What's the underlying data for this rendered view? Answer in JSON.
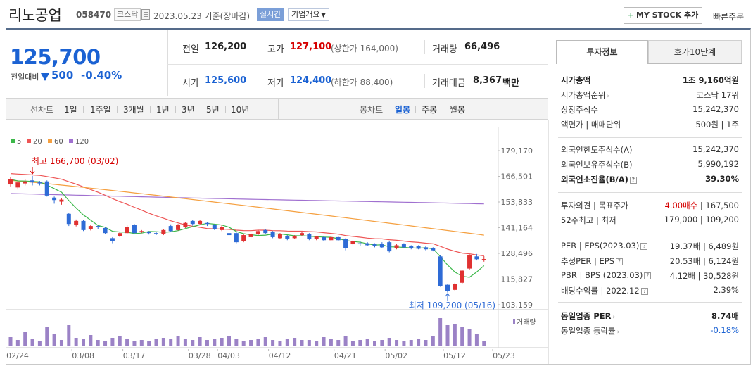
{
  "header": {
    "company": "리노공업",
    "code": "058470",
    "market_badge": "코스닥",
    "date": "2023.05.23 기준(장마감)",
    "realtime_label": "실시간",
    "overview_label": "기업개요",
    "mystock_label": "MY STOCK 추가",
    "mystock_plus": "+",
    "quickorder_label": "빠른주문"
  },
  "price": {
    "current": "125,700",
    "change_label": "전일대비",
    "change_value": "500",
    "change_pct": "-0.40%"
  },
  "info": {
    "prev_close_label": "전일",
    "prev_close": "126,200",
    "high_label": "고가",
    "high": "127,100",
    "upper_limit": "(상한가 164,000)",
    "volume_label": "거래량",
    "volume": "66,496",
    "open_label": "시가",
    "open": "125,600",
    "low_label": "저가",
    "low": "124,400",
    "lower_limit": "(하한가 88,400)",
    "amount_label": "거래대금",
    "amount": "8,367",
    "amount_unit": "백만"
  },
  "chart_tabs": {
    "line_label": "선차트",
    "periods": [
      "1일",
      "1주일",
      "3개월",
      "1년",
      "3년",
      "5년",
      "10년"
    ],
    "candle_label": "봉차트",
    "candles": [
      "일봉",
      "주봉",
      "월봉"
    ],
    "selected_candle": "일봉"
  },
  "chart_data": {
    "type": "candlestick",
    "legend": [
      {
        "name": "5",
        "color": "#3cb84a"
      },
      {
        "name": "20",
        "color": "#ee5555"
      },
      {
        "name": "60",
        "color": "#f5a040"
      },
      {
        "name": "120",
        "color": "#a070d0"
      }
    ],
    "y_ticks": [
      "179,170",
      "166,501",
      "153,833",
      "141,164",
      "128,496",
      "115,827",
      "103,159"
    ],
    "ylim": [
      103159,
      179170
    ],
    "x_ticks": [
      "02/24",
      "03/08",
      "03/17",
      "03/28",
      "04/03",
      "04/12",
      "04/21",
      "05/02",
      "05/12",
      "05/23"
    ],
    "max_label": "최고 166,700 (03/02)",
    "min_label": "최저 109,200 (05/16)",
    "volume_label": "거래량",
    "candles": [
      {
        "o": 162500,
        "c": 165000,
        "h": 166000,
        "l": 161500
      },
      {
        "o": 161000,
        "c": 163500,
        "h": 164500,
        "l": 160000
      },
      {
        "o": 163000,
        "c": 164000,
        "h": 165000,
        "l": 162000
      },
      {
        "o": 164500,
        "c": 163500,
        "h": 166700,
        "l": 162000
      },
      {
        "o": 163500,
        "c": 163000,
        "h": 164200,
        "l": 162000
      },
      {
        "o": 164000,
        "c": 157000,
        "h": 164500,
        "l": 156500
      },
      {
        "o": 156000,
        "c": 154800,
        "h": 156500,
        "l": 153000
      },
      {
        "o": 154000,
        "c": 155000,
        "h": 155800,
        "l": 152500
      },
      {
        "o": 148000,
        "c": 143000,
        "h": 148500,
        "l": 142000
      },
      {
        "o": 142500,
        "c": 144500,
        "h": 145200,
        "l": 141800
      },
      {
        "o": 144500,
        "c": 140000,
        "h": 145000,
        "l": 139500
      },
      {
        "o": 140500,
        "c": 142000,
        "h": 142500,
        "l": 139800
      },
      {
        "o": 142000,
        "c": 141800,
        "h": 142200,
        "l": 140500
      },
      {
        "o": 141000,
        "c": 138500,
        "h": 141500,
        "l": 138000
      },
      {
        "o": 136000,
        "c": 134500,
        "h": 136500,
        "l": 133500
      },
      {
        "o": 137000,
        "c": 138500,
        "h": 139000,
        "l": 136500
      },
      {
        "o": 138500,
        "c": 141500,
        "h": 142500,
        "l": 138000
      },
      {
        "o": 142500,
        "c": 138500,
        "h": 143000,
        "l": 138000
      },
      {
        "o": 139000,
        "c": 139500,
        "h": 140000,
        "l": 138500
      },
      {
        "o": 139000,
        "c": 138500,
        "h": 139500,
        "l": 137800
      },
      {
        "o": 138500,
        "c": 138000,
        "h": 139200,
        "l": 137500
      },
      {
        "o": 138000,
        "c": 140000,
        "h": 140500,
        "l": 137500
      },
      {
        "o": 142000,
        "c": 139500,
        "h": 142800,
        "l": 139000
      },
      {
        "o": 140000,
        "c": 142500,
        "h": 143000,
        "l": 139800
      },
      {
        "o": 141500,
        "c": 143500,
        "h": 144000,
        "l": 141000
      },
      {
        "o": 144500,
        "c": 143000,
        "h": 145000,
        "l": 142200
      },
      {
        "o": 143000,
        "c": 144500,
        "h": 145000,
        "l": 142500
      },
      {
        "o": 143500,
        "c": 143000,
        "h": 144000,
        "l": 142000
      },
      {
        "o": 142500,
        "c": 140500,
        "h": 143000,
        "l": 140000
      },
      {
        "o": 140000,
        "c": 141500,
        "h": 142500,
        "l": 139500
      },
      {
        "o": 138500,
        "c": 137500,
        "h": 139000,
        "l": 137000
      },
      {
        "o": 138500,
        "c": 134000,
        "h": 139000,
        "l": 133500
      },
      {
        "o": 134500,
        "c": 137500,
        "h": 138000,
        "l": 134000
      },
      {
        "o": 136500,
        "c": 138000,
        "h": 138500,
        "l": 136000
      },
      {
        "o": 138000,
        "c": 139500,
        "h": 140000,
        "l": 137500
      },
      {
        "o": 140000,
        "c": 138500,
        "h": 140500,
        "l": 138000
      },
      {
        "o": 139000,
        "c": 136500,
        "h": 139500,
        "l": 136000
      },
      {
        "o": 136000,
        "c": 138000,
        "h": 138500,
        "l": 135500
      },
      {
        "o": 137000,
        "c": 135800,
        "h": 137500,
        "l": 135000
      },
      {
        "o": 136000,
        "c": 137000,
        "h": 137500,
        "l": 135500
      },
      {
        "o": 137500,
        "c": 138500,
        "h": 139000,
        "l": 137000
      },
      {
        "o": 138000,
        "c": 135500,
        "h": 138500,
        "l": 135000
      },
      {
        "o": 135500,
        "c": 136800,
        "h": 137000,
        "l": 135000
      },
      {
        "o": 136500,
        "c": 135000,
        "h": 137000,
        "l": 134500
      },
      {
        "o": 135000,
        "c": 136500,
        "h": 137000,
        "l": 134500
      },
      {
        "o": 136500,
        "c": 135000,
        "h": 137000,
        "l": 134500
      },
      {
        "o": 135500,
        "c": 131000,
        "h": 136000,
        "l": 130000
      },
      {
        "o": 133000,
        "c": 134500,
        "h": 135000,
        "l": 132500
      },
      {
        "o": 133500,
        "c": 133000,
        "h": 134500,
        "l": 132000
      },
      {
        "o": 133500,
        "c": 132500,
        "h": 134000,
        "l": 132000
      },
      {
        "o": 133000,
        "c": 132200,
        "h": 133500,
        "l": 131500
      },
      {
        "o": 133000,
        "c": 131500,
        "h": 134000,
        "l": 131000
      },
      {
        "o": 134000,
        "c": 129500,
        "h": 134500,
        "l": 129000
      },
      {
        "o": 131000,
        "c": 132500,
        "h": 133000,
        "l": 130500
      },
      {
        "o": 133000,
        "c": 131500,
        "h": 133500,
        "l": 131000
      },
      {
        "o": 132000,
        "c": 131000,
        "h": 132500,
        "l": 130500
      },
      {
        "o": 132000,
        "c": 130800,
        "h": 132500,
        "l": 130500
      },
      {
        "o": 131500,
        "c": 130500,
        "h": 132000,
        "l": 130000
      },
      {
        "o": 131000,
        "c": 130000,
        "h": 131500,
        "l": 129500
      },
      {
        "o": 127000,
        "c": 112500,
        "h": 127500,
        "l": 112000
      },
      {
        "o": 113000,
        "c": 110000,
        "h": 113500,
        "l": 109200
      },
      {
        "o": 110500,
        "c": 113500,
        "h": 114000,
        "l": 110000
      },
      {
        "o": 114000,
        "c": 120000,
        "h": 120500,
        "l": 113500
      },
      {
        "o": 121000,
        "c": 127500,
        "h": 128000,
        "l": 120500
      },
      {
        "o": 127000,
        "c": 125600,
        "h": 128200,
        "l": 125000
      },
      {
        "o": 125600,
        "c": 125700,
        "h": 127100,
        "l": 124400
      }
    ],
    "volume": [
      13,
      9,
      20,
      11,
      8,
      27,
      18,
      9,
      30,
      12,
      10,
      16,
      9,
      8,
      12,
      14,
      10,
      8,
      9,
      8,
      11,
      12,
      10,
      15,
      11,
      9,
      13,
      9,
      10,
      12,
      14,
      10,
      8,
      9,
      11,
      13,
      9,
      8,
      10,
      12,
      9,
      9,
      8,
      13,
      10,
      9,
      14,
      8,
      9,
      10,
      8,
      9,
      12,
      9,
      8,
      9,
      10,
      9,
      15,
      40,
      30,
      32,
      27,
      25,
      18,
      8
    ]
  },
  "right_panel": {
    "tab_active": "투자정보",
    "tab_other": "호가10단계",
    "rows": [
      {
        "label": "시가총액",
        "value": "1조 9,160억원",
        "bold": true
      },
      {
        "label": "시가총액순위",
        "value": "코스닥 17위",
        "arrow": true
      },
      {
        "label": "상장주식수",
        "value": "15,242,370"
      },
      {
        "label": "액면가 | 매매단위",
        "value": "500원 | 1주"
      },
      {
        "label": "외국인한도주식수(A)",
        "value": "15,242,370"
      },
      {
        "label": "외국인보유주식수(B)",
        "value": "5,990,192"
      },
      {
        "label": "외국인소진율(B/A)",
        "value": "39.30%",
        "bold": true,
        "help": true
      },
      {
        "label": "투자의견 | 목표주가",
        "value_red": "4.00매수",
        "value": "167,500"
      },
      {
        "label": "52주최고 | 최저",
        "value": "179,000 | 109,200"
      },
      {
        "label": "PER | EPS(2023.03)",
        "value": "19.37배 | 6,489원",
        "help": true
      },
      {
        "label": "추정PER | EPS",
        "value": "20.53배 | 6,124원",
        "help": true
      },
      {
        "label": "PBR | BPS (2023.03)",
        "value": "4.12배 | 30,528원",
        "help": true
      },
      {
        "label": "배당수익률 | 2022.12",
        "value": "2.39%",
        "help": true
      },
      {
        "label": "동일업종 PER",
        "value": "8.74배",
        "bold": true,
        "arrow": true
      },
      {
        "label": "동일업종 등락률",
        "value": "-0.18%",
        "blue": true,
        "arrow": true
      }
    ]
  }
}
